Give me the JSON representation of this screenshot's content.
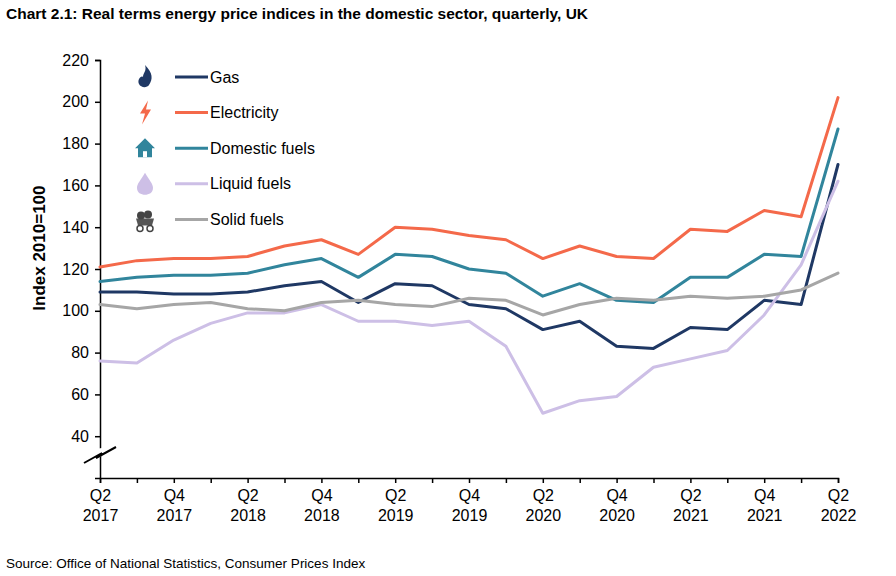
{
  "chart_data": {
    "type": "line",
    "title": "Chart 2.1: Real terms energy price indices in the domestic sector, quarterly, UK",
    "y_label": "Index 2010=100",
    "source": "Source: Office of National Statistics, Consumer Prices Index",
    "categories": [
      "Q2 2017",
      null,
      "Q4 2017",
      null,
      "Q2 2018",
      null,
      "Q4 2018",
      null,
      "Q2 2019",
      null,
      "Q4 2019",
      null,
      "Q2 2020",
      null,
      "Q4 2020",
      null,
      "Q2 2021",
      null,
      "Q4 2021",
      null,
      "Q2 2022"
    ],
    "ylim": [
      20,
      220
    ],
    "yticks": [
      40,
      60,
      80,
      100,
      120,
      140,
      160,
      180,
      200,
      220
    ],
    "grid": false,
    "legend": "top-left",
    "series": [
      {
        "name": "Gas",
        "color": "#1f3864",
        "values": [
          109,
          109,
          108,
          108,
          109,
          112,
          114,
          104,
          113,
          112,
          103,
          101,
          91,
          95,
          83,
          82,
          92,
          91,
          105,
          103,
          170
        ]
      },
      {
        "name": "Electricity",
        "color": "#f4694a",
        "values": [
          121,
          124,
          125,
          125,
          126,
          131,
          134,
          127,
          140,
          139,
          136,
          134,
          125,
          131,
          126,
          125,
          139,
          138,
          148,
          145,
          202
        ]
      },
      {
        "name": "Domestic fuels",
        "color": "#31859c",
        "values": [
          114,
          116,
          117,
          117,
          118,
          122,
          125,
          116,
          127,
          126,
          120,
          118,
          107,
          113,
          105,
          104,
          116,
          116,
          127,
          126,
          187
        ]
      },
      {
        "name": "Liquid fuels",
        "color": "#cdbfe6",
        "values": [
          76,
          75,
          86,
          94,
          99,
          99,
          103,
          95,
          95,
          93,
          95,
          83,
          51,
          57,
          59,
          73,
          77,
          81,
          98,
          122,
          162
        ]
      },
      {
        "name": "Solid fuels",
        "color": "#a6a6a6",
        "values": [
          103,
          101,
          103,
          104,
          101,
          100,
          104,
          105,
          103,
          102,
          106,
          105,
          98,
          103,
          106,
          105,
          107,
          106,
          107,
          110,
          118
        ]
      }
    ]
  }
}
